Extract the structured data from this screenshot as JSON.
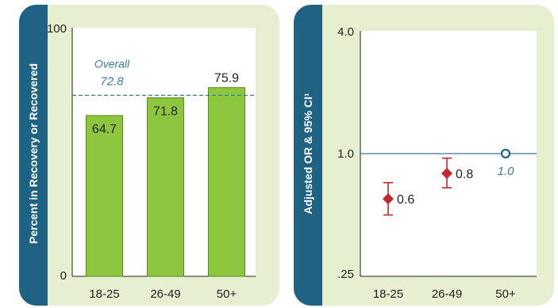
{
  "colors": {
    "panel_bg": "#e6efcf",
    "strip": "#1f6283",
    "bar": "#8cc63f",
    "bar_stroke": "#5a8a1a",
    "ref_line": "#3b7a96",
    "marker": "#c0282d",
    "ref_marker": "#1f6283"
  },
  "chart_data": [
    {
      "type": "bar",
      "ylabel": "Percent in Recovery or Recovered",
      "categories": [
        "18-25",
        "26-49",
        "50+"
      ],
      "values": [
        64.7,
        71.8,
        75.9
      ],
      "value_labels": [
        "64.7",
        "71.8",
        "75.9"
      ],
      "ylim": [
        0,
        100
      ],
      "yticks": [
        "0",
        "100"
      ],
      "reference": {
        "label": "Overall",
        "value_label": "72.8",
        "value": 72.8
      },
      "grid": false
    },
    {
      "type": "scatter",
      "ylabel": "Adjusted OR & 95% CI¹",
      "scale": "log",
      "categories": [
        "18-25",
        "26-49",
        "50+"
      ],
      "values": [
        0.6,
        0.8,
        1.0
      ],
      "value_labels": [
        "0.6",
        "0.8",
        "1.0"
      ],
      "ci_low": [
        0.5,
        0.68,
        null
      ],
      "ci_high": [
        0.72,
        0.95,
        null
      ],
      "reference_category": "50+",
      "ylim": [
        0.25,
        4.0
      ],
      "yticks": [
        {
          "value": 0.25,
          "label": ".25"
        },
        {
          "value": 1.0,
          "label": "1.0"
        },
        {
          "value": 4.0,
          "label": "4.0"
        }
      ],
      "reference_line": 1.0,
      "grid": false
    }
  ]
}
